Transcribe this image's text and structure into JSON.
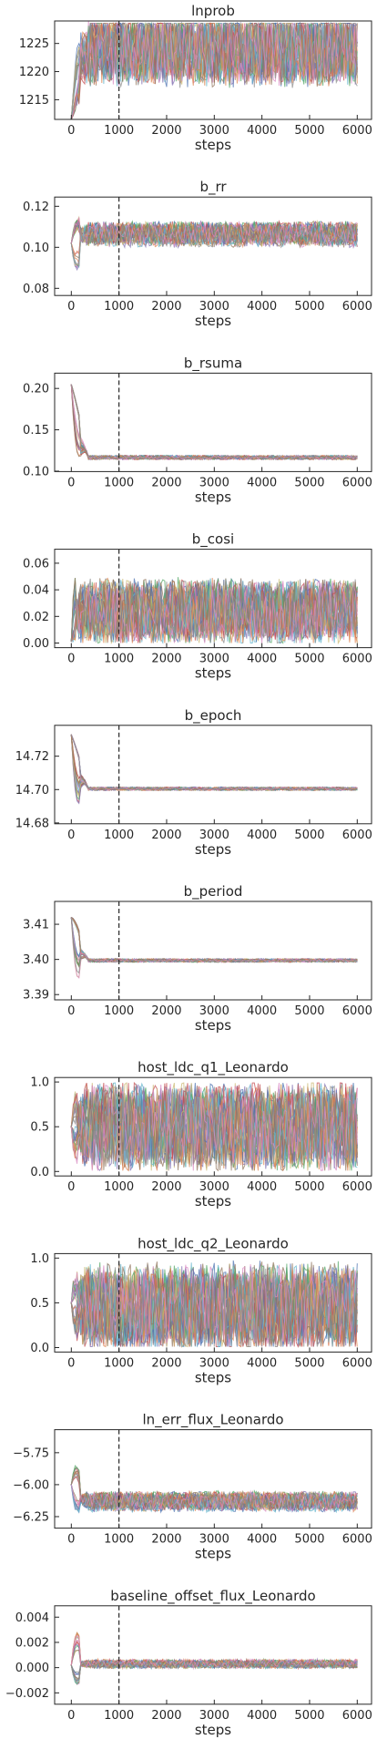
{
  "chart_data": [
    {
      "type": "line",
      "title": "lnprob",
      "xlabel": "steps",
      "xlim": [
        -350,
        6300
      ],
      "xticks": [
        0,
        1000,
        2000,
        3000,
        4000,
        5000,
        6000
      ],
      "ylim": [
        1211.5,
        1229
      ],
      "yticks": [
        1215,
        1220,
        1225
      ],
      "vline": 1000,
      "trace": {
        "start": 1211.5,
        "center": 1224.6,
        "spread": 4.0,
        "clip": [
          1211.5,
          1228.6
        ],
        "converge": 400,
        "lo": 1211.5,
        "hi": 1228.6
      }
    },
    {
      "type": "line",
      "title": "b_rr",
      "xlabel": "steps",
      "xlim": [
        -350,
        6300
      ],
      "xticks": [
        0,
        1000,
        2000,
        3000,
        4000,
        5000,
        6000
      ],
      "ylim": [
        0.0765,
        0.1245
      ],
      "yticks": [
        0.08,
        0.1,
        0.12
      ],
      "vline": 1000,
      "trace": {
        "start": 0.102,
        "center": 0.1065,
        "spread": 0.0035,
        "clip": [
          0.097,
          0.116
        ],
        "converge": 350,
        "lo": 0.079,
        "hi": 0.122
      }
    },
    {
      "type": "line",
      "title": "b_rsuma",
      "xlabel": "steps",
      "xlim": [
        -350,
        6300
      ],
      "xticks": [
        0,
        1000,
        2000,
        3000,
        4000,
        5000,
        6000
      ],
      "ylim": [
        0.0995,
        0.2185
      ],
      "yticks": [
        0.1,
        0.15,
        0.2
      ],
      "vline": 1000,
      "trace": {
        "start": 0.205,
        "center": 0.1165,
        "spread": 0.0015,
        "clip": [
          0.112,
          0.121
        ],
        "converge": 350,
        "lo": 0.112,
        "hi": 0.212
      }
    },
    {
      "type": "line",
      "title": "b_cosi",
      "xlabel": "steps",
      "xlim": [
        -350,
        6300
      ],
      "xticks": [
        0,
        1000,
        2000,
        3000,
        4000,
        5000,
        6000
      ],
      "ylim": [
        -0.0035,
        0.0705
      ],
      "yticks": [
        0.0,
        0.02,
        0.04,
        0.06
      ],
      "vline": 1000,
      "trace": {
        "start": 0.001,
        "center": 0.024,
        "spread": 0.014,
        "clip": [
          0.0,
          0.052
        ],
        "converge": 200,
        "lo": 0.0,
        "hi": 0.068
      }
    },
    {
      "type": "line",
      "title": "b_epoch",
      "xlabel": "steps",
      "xlim": [
        -350,
        6300
      ],
      "xticks": [
        0,
        1000,
        2000,
        3000,
        4000,
        5000,
        6000
      ],
      "ylim": [
        14.6795,
        14.7385
      ],
      "yticks": [
        14.68,
        14.7,
        14.72
      ],
      "vline": 1000,
      "trace": {
        "start": 14.733,
        "center": 14.7005,
        "spread": 0.0006,
        "clip": [
          14.6985,
          14.702
        ],
        "converge": 350,
        "lo": 14.682,
        "hi": 14.736
      }
    },
    {
      "type": "line",
      "title": "b_period",
      "xlabel": "steps",
      "xlim": [
        -350,
        6300
      ],
      "xticks": [
        0,
        1000,
        2000,
        3000,
        4000,
        5000,
        6000
      ],
      "ylim": [
        3.3885,
        3.4165
      ],
      "yticks": [
        3.39,
        3.4,
        3.41
      ],
      "vline": 1000,
      "trace": {
        "start": 3.412,
        "center": 3.3997,
        "spread": 0.0003,
        "clip": [
          3.3988,
          3.4006
        ],
        "converge": 350,
        "lo": 3.3895,
        "hi": 3.4155
      }
    },
    {
      "type": "line",
      "title": "host_ldc_q1_Leonardo",
      "xlabel": "steps",
      "xlim": [
        -350,
        6300
      ],
      "xticks": [
        0,
        1000,
        2000,
        3000,
        4000,
        5000,
        6000
      ],
      "ylim": [
        -0.05,
        1.05
      ],
      "yticks": [
        0.0,
        0.5,
        1.0
      ],
      "vline": 1000,
      "trace": {
        "start": 0.5,
        "center": 0.5,
        "spread": 0.28,
        "clip": [
          0.01,
          0.99
        ],
        "converge": 250,
        "lo": 0.01,
        "hi": 0.99
      }
    },
    {
      "type": "line",
      "title": "host_ldc_q2_Leonardo",
      "xlabel": "steps",
      "xlim": [
        -350,
        6300
      ],
      "xticks": [
        0,
        1000,
        2000,
        3000,
        4000,
        5000,
        6000
      ],
      "ylim": [
        -0.05,
        1.05
      ],
      "yticks": [
        0.0,
        0.5,
        1.0
      ],
      "vline": 1000,
      "trace": {
        "start": 0.5,
        "center": 0.45,
        "spread": 0.28,
        "clip": [
          0.01,
          0.99
        ],
        "converge": 250,
        "lo": 0.01,
        "hi": 0.99
      }
    },
    {
      "type": "line",
      "title": "ln_err_flux_Leonardo",
      "xlabel": "steps",
      "xlim": [
        -350,
        6300
      ],
      "xticks": [
        0,
        1000,
        2000,
        3000,
        4000,
        5000,
        6000
      ],
      "ylim": [
        -6.34,
        -5.57
      ],
      "yticks": [
        -6.25,
        -6.0,
        -5.75
      ],
      "vline": 1000,
      "trace": {
        "start": -6.0,
        "center": -6.13,
        "spread": 0.045,
        "clip": [
          -6.3,
          -5.99
        ],
        "converge": 350,
        "lo": -6.3,
        "hi": -5.6
      }
    },
    {
      "type": "line",
      "title": "baseline_offset_flux_Leonardo",
      "xlabel": "steps",
      "xlim": [
        -350,
        6300
      ],
      "xticks": [
        0,
        1000,
        2000,
        3000,
        4000,
        5000,
        6000
      ],
      "ylim": [
        -0.0029,
        0.0049
      ],
      "yticks": [
        -0.002,
        0.0,
        0.002,
        0.004
      ],
      "vline": 1000,
      "trace": {
        "start": 0.0002,
        "center": 0.0003,
        "spread": 0.0002,
        "clip": [
          -0.0005,
          0.0011
        ],
        "converge": 350,
        "lo": -0.0025,
        "hi": 0.0045
      }
    }
  ],
  "colors": {
    "walkers": [
      "#4c72b0",
      "#55a868",
      "#c44e52",
      "#8172b2",
      "#ccb974",
      "#64b5cd",
      "#dd8452",
      "#937860",
      "#da8bc3",
      "#8c8c8c"
    ],
    "axes": "#262626",
    "vline": "#262626"
  },
  "walker_count": 30,
  "step_max": 6000
}
